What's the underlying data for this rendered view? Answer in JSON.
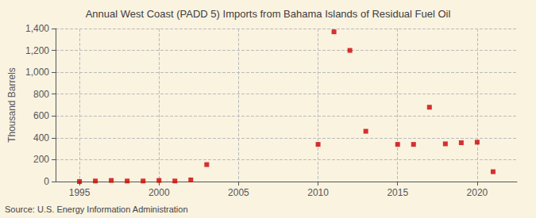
{
  "chart_data": {
    "type": "scatter",
    "title": "Annual West Coast (PADD 5) Imports from Bahama Islands of Residual Fuel Oil",
    "ylabel": "Thousand Barrels",
    "source": "Source: U.S. Energy Information Administration",
    "x": [
      1995,
      1996,
      1997,
      1998,
      1999,
      2000,
      2001,
      2002,
      2003,
      2010,
      2011,
      2012,
      2013,
      2015,
      2016,
      2017,
      2018,
      2019,
      2020,
      2021
    ],
    "values": [
      0,
      5,
      10,
      5,
      5,
      10,
      5,
      15,
      155,
      340,
      1370,
      1200,
      460,
      340,
      340,
      680,
      345,
      355,
      360,
      90
    ],
    "color": "#cc0000",
    "marker": "square",
    "xlim": [
      1993.5,
      2022.5
    ],
    "xticks": [
      1995,
      2000,
      2005,
      2010,
      2015,
      2020
    ],
    "ylim": [
      0,
      1400
    ],
    "yticks": [
      0,
      200,
      400,
      600,
      800,
      {
        "value": 1000,
        "label": "1,000"
      },
      {
        "value": 1200,
        "label": "1,200"
      },
      {
        "value": 1400,
        "label": "1,400"
      }
    ],
    "grid": true
  }
}
